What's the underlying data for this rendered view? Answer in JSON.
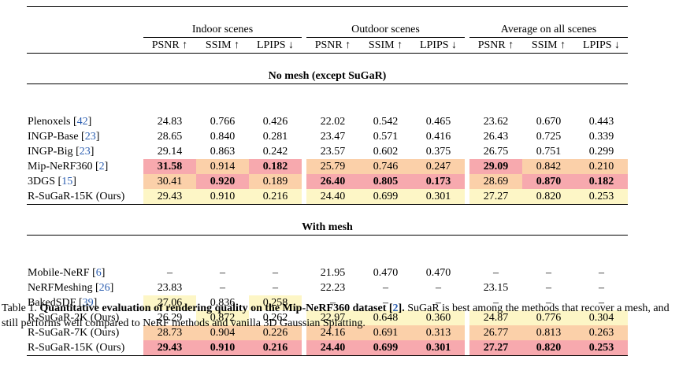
{
  "table": {
    "group_headers": [
      "Indoor scenes",
      "Outdoor scenes",
      "Average on all scenes"
    ],
    "metric_headers": [
      "PSNR ↑",
      "SSIM ↑",
      "LPIPS ↓"
    ],
    "sections": [
      {
        "title": "No mesh (except SuGaR)",
        "rows": [
          {
            "method": "Plenoxels",
            "cite": "42",
            "values": [
              "24.83",
              "0.766",
              "0.426",
              "22.02",
              "0.542",
              "0.465",
              "23.62",
              "0.670",
              "0.443"
            ],
            "highlight": [
              "",
              "",
              "",
              "",
              "",
              "",
              "",
              "",
              ""
            ],
            "bold": [
              false,
              false,
              false,
              false,
              false,
              false,
              false,
              false,
              false
            ]
          },
          {
            "method": "INGP-Base",
            "cite": "23",
            "values": [
              "28.65",
              "0.840",
              "0.281",
              "23.47",
              "0.571",
              "0.416",
              "26.43",
              "0.725",
              "0.339"
            ],
            "highlight": [
              "",
              "",
              "",
              "",
              "",
              "",
              "",
              "",
              ""
            ],
            "bold": [
              false,
              false,
              false,
              false,
              false,
              false,
              false,
              false,
              false
            ]
          },
          {
            "method": "INGP-Big",
            "cite": "23",
            "values": [
              "29.14",
              "0.863",
              "0.242",
              "23.57",
              "0.602",
              "0.375",
              "26.75",
              "0.751",
              "0.299"
            ],
            "highlight": [
              "",
              "",
              "",
              "",
              "",
              "",
              "",
              "",
              ""
            ],
            "bold": [
              false,
              false,
              false,
              false,
              false,
              false,
              false,
              false,
              false
            ]
          },
          {
            "method": "Mip-NeRF360",
            "cite": "2",
            "values": [
              "31.58",
              "0.914",
              "0.182",
              "25.79",
              "0.746",
              "0.247",
              "29.09",
              "0.842",
              "0.210"
            ],
            "highlight": [
              "red",
              "orange",
              "red",
              "orange",
              "orange",
              "orange",
              "red",
              "orange",
              "orange"
            ],
            "bold": [
              true,
              false,
              true,
              false,
              false,
              false,
              true,
              false,
              false
            ]
          },
          {
            "method": "3DGS",
            "cite": "15",
            "values": [
              "30.41",
              "0.920",
              "0.189",
              "26.40",
              "0.805",
              "0.173",
              "28.69",
              "0.870",
              "0.182"
            ],
            "highlight": [
              "orange",
              "red",
              "orange",
              "red",
              "red",
              "red",
              "orange",
              "red",
              "red"
            ],
            "bold": [
              false,
              true,
              false,
              true,
              true,
              true,
              false,
              true,
              true
            ]
          },
          {
            "method": "R-SuGaR-15K (Ours)",
            "cite": "",
            "values": [
              "29.43",
              "0.910",
              "0.216",
              "24.40",
              "0.699",
              "0.301",
              "27.27",
              "0.820",
              "0.253"
            ],
            "highlight": [
              "yellow",
              "yellow",
              "yellow",
              "yellow",
              "yellow",
              "yellow",
              "yellow",
              "yellow",
              "yellow"
            ],
            "bold": [
              false,
              false,
              false,
              false,
              false,
              false,
              false,
              false,
              false
            ]
          }
        ]
      },
      {
        "title": "With mesh",
        "rows": [
          {
            "method": "Mobile-NeRF",
            "cite": "6",
            "values": [
              "–",
              "–",
              "–",
              "21.95",
              "0.470",
              "0.470",
              "–",
              "–",
              "–"
            ],
            "highlight": [
              "",
              "",
              "",
              "",
              "",
              "",
              "",
              "",
              ""
            ],
            "bold": [
              false,
              false,
              false,
              false,
              false,
              false,
              false,
              false,
              false
            ]
          },
          {
            "method": "NeRFMeshing",
            "cite": "26",
            "values": [
              "23.83",
              "–",
              "–",
              "22.23",
              "–",
              "–",
              "23.15",
              "–",
              "–"
            ],
            "highlight": [
              "",
              "",
              "",
              "",
              "",
              "",
              "",
              "",
              ""
            ],
            "bold": [
              false,
              false,
              false,
              false,
              false,
              false,
              false,
              false,
              false
            ]
          },
          {
            "method": "BakedSDF",
            "cite": "39",
            "values": [
              "27.06",
              "0.836",
              "0.258",
              "–",
              "–",
              "–",
              "–",
              "–",
              "–"
            ],
            "highlight": [
              "yellow",
              "",
              "yellow",
              "",
              "",
              "",
              "",
              "",
              ""
            ],
            "bold": [
              false,
              false,
              false,
              false,
              false,
              false,
              false,
              false,
              false
            ]
          },
          {
            "method": "R-SuGaR-2K (Ours)",
            "cite": "",
            "values": [
              "26.29",
              "0.872",
              "0.262",
              "22.97",
              "0.648",
              "0.360",
              "24.87",
              "0.776",
              "0.304"
            ],
            "highlight": [
              "",
              "yellow",
              "",
              "yellow",
              "yellow",
              "yellow",
              "yellow",
              "yellow",
              "yellow"
            ],
            "bold": [
              false,
              false,
              false,
              false,
              false,
              false,
              false,
              false,
              false
            ]
          },
          {
            "method": "R-SuGaR-7K (Ours)",
            "cite": "",
            "values": [
              "28.73",
              "0.904",
              "0.226",
              "24.16",
              "0.691",
              "0.313",
              "26.77",
              "0.813",
              "0.263"
            ],
            "highlight": [
              "orange",
              "orange",
              "orange",
              "orange",
              "orange",
              "orange",
              "orange",
              "orange",
              "orange"
            ],
            "bold": [
              false,
              false,
              false,
              false,
              false,
              false,
              false,
              false,
              false
            ]
          },
          {
            "method": "R-SuGaR-15K (Ours)",
            "cite": "",
            "values": [
              "29.43",
              "0.910",
              "0.216",
              "24.40",
              "0.699",
              "0.301",
              "27.27",
              "0.820",
              "0.253"
            ],
            "highlight": [
              "red",
              "red",
              "red",
              "red",
              "red",
              "red",
              "red",
              "red",
              "red"
            ],
            "bold": [
              true,
              true,
              true,
              true,
              true,
              true,
              true,
              true,
              true
            ]
          }
        ]
      }
    ]
  },
  "caption": {
    "label": "Table 1.",
    "title_before": "Quantitative evaluation of rendering quality on the Mip-NeRF360 dataset [",
    "title_cite": "2",
    "title_after": "].",
    "body": " SuGaR is best among the methods that recover a mesh, and still performs well compared to NeRF methods and vanilla 3D Gaussian Splatting."
  }
}
